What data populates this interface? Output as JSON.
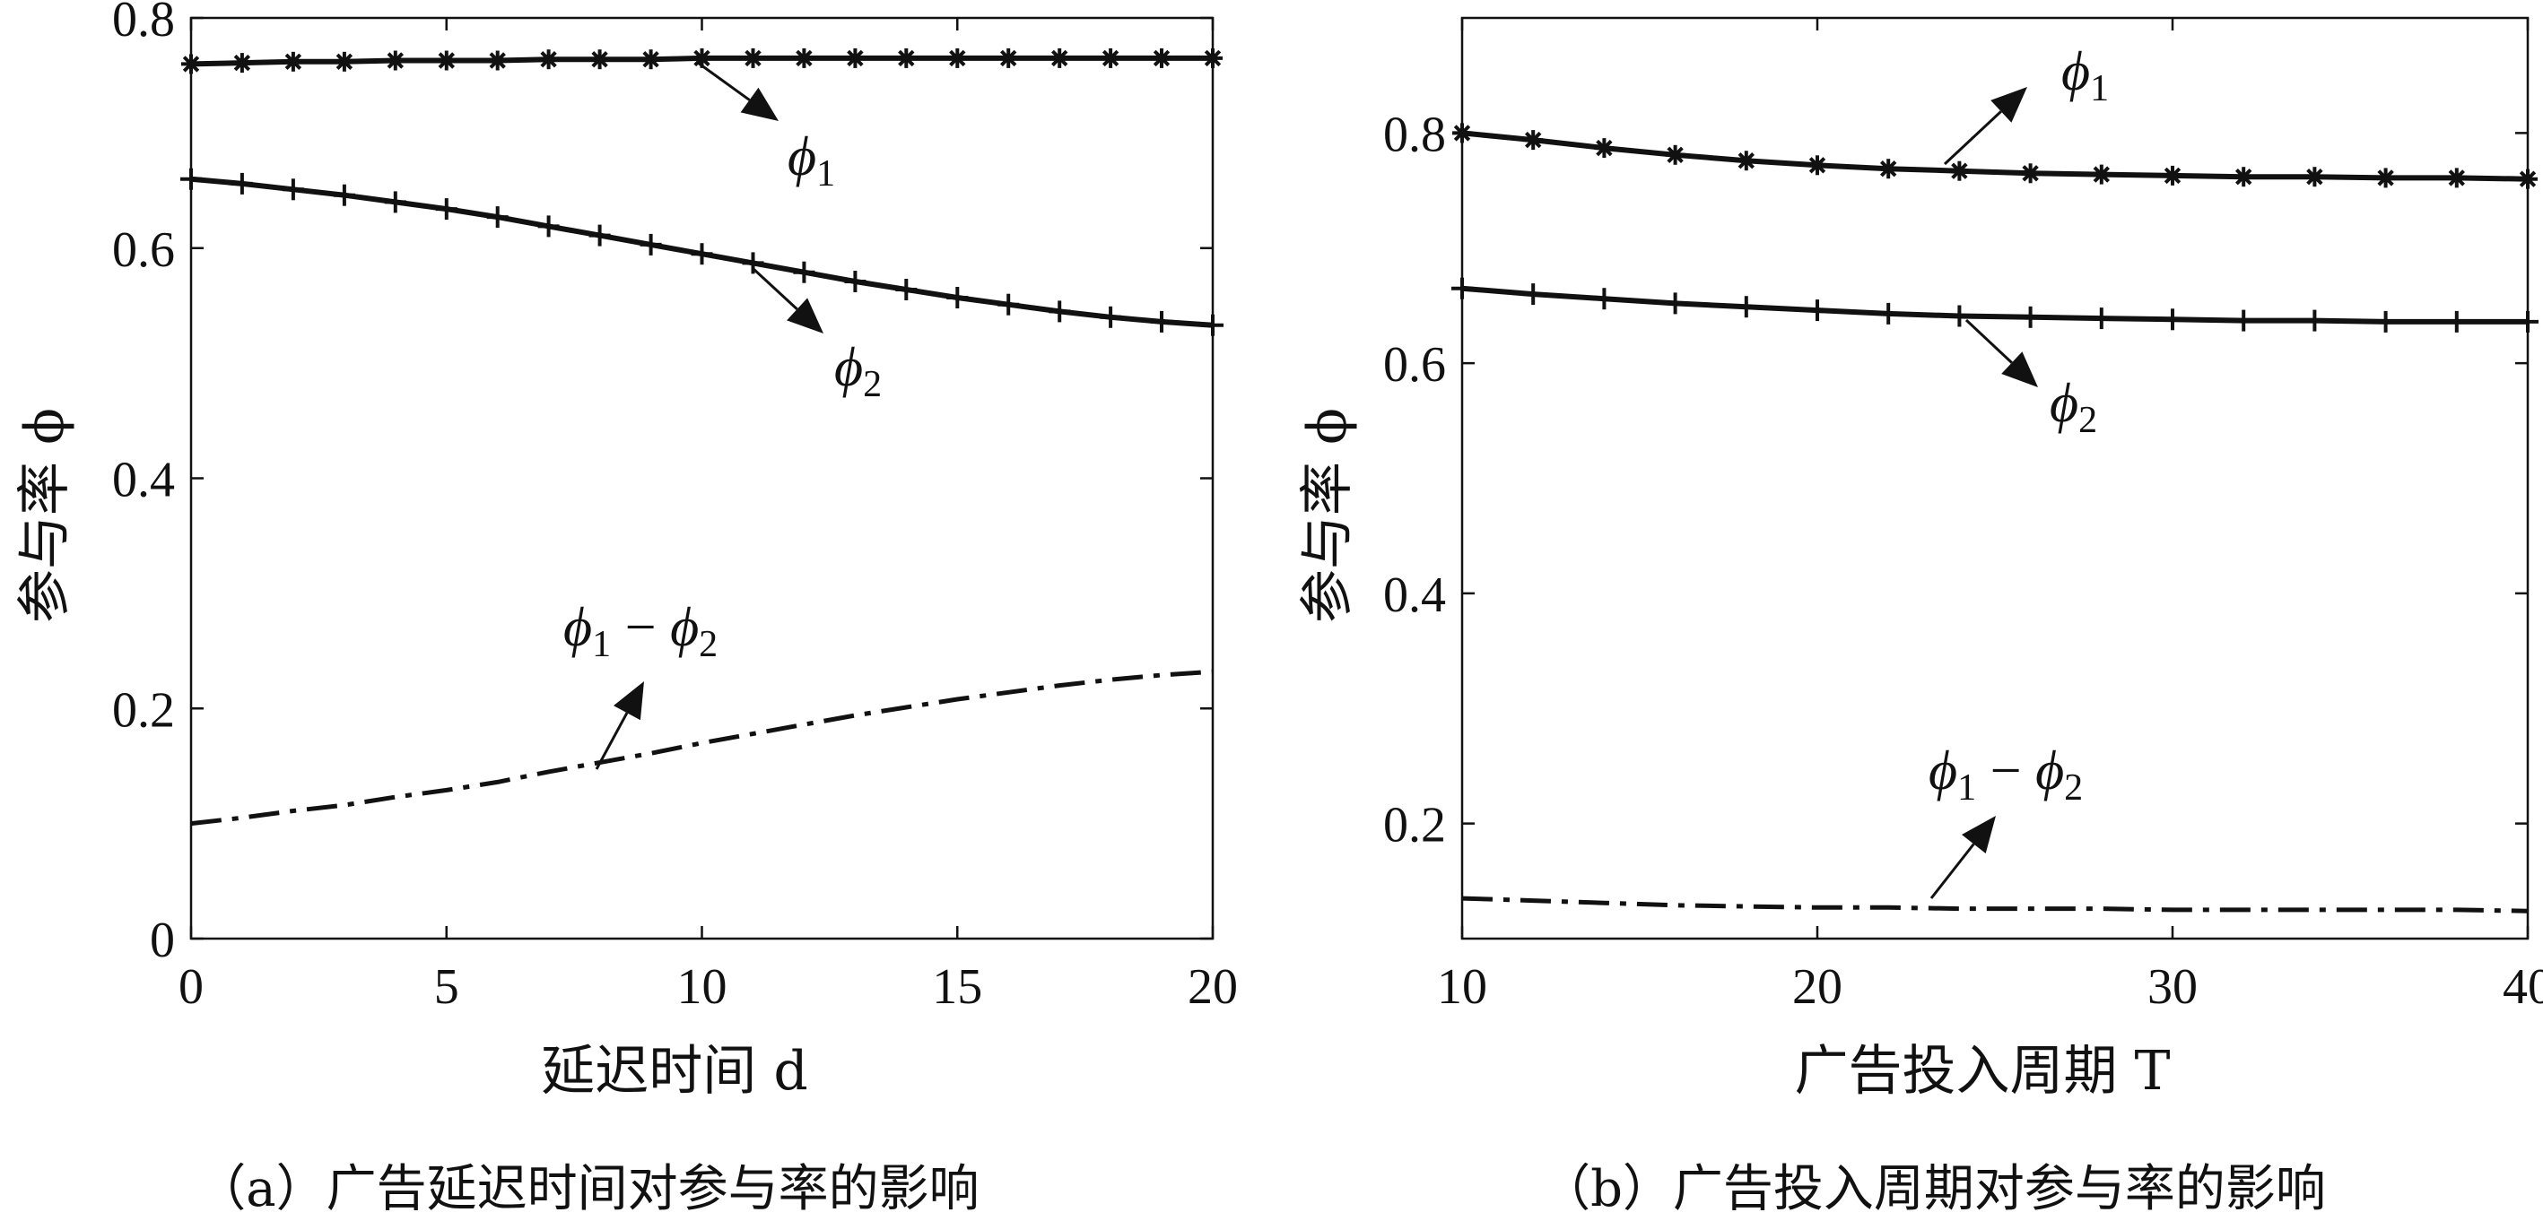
{
  "chart_data": [
    {
      "type": "line",
      "xlabel": "延迟时间 d",
      "ylabel": "参与率 ϕ",
      "caption": "（a）广告延迟时间对参与率的影响",
      "xlim": [
        0,
        20
      ],
      "ylim": [
        0,
        0.8
      ],
      "xticks": [
        "0",
        "5",
        "10",
        "15",
        "20"
      ],
      "yticks": [
        "0",
        "0.2",
        "0.4",
        "0.6",
        "0.8"
      ],
      "x": [
        0,
        1,
        2,
        3,
        4,
        5,
        6,
        7,
        8,
        9,
        10,
        11,
        12,
        13,
        14,
        15,
        16,
        17,
        18,
        19,
        20
      ],
      "series": [
        {
          "name": "ϕ1",
          "marker": "asterisk",
          "style": "solid",
          "values": [
            0.76,
            0.761,
            0.762,
            0.762,
            0.763,
            0.763,
            0.763,
            0.764,
            0.764,
            0.764,
            0.765,
            0.765,
            0.765,
            0.765,
            0.765,
            0.765,
            0.765,
            0.765,
            0.765,
            0.765,
            0.765
          ]
        },
        {
          "name": "ϕ2",
          "marker": "plus",
          "style": "solid",
          "values": [
            0.66,
            0.656,
            0.651,
            0.646,
            0.64,
            0.634,
            0.627,
            0.619,
            0.611,
            0.603,
            0.595,
            0.587,
            0.579,
            0.571,
            0.564,
            0.557,
            0.551,
            0.545,
            0.54,
            0.536,
            0.533
          ]
        },
        {
          "name": "ϕ1 − ϕ2",
          "marker": "none",
          "style": "dashdot",
          "values": [
            0.1,
            0.105,
            0.111,
            0.116,
            0.123,
            0.129,
            0.136,
            0.145,
            0.153,
            0.161,
            0.17,
            0.178,
            0.186,
            0.194,
            0.201,
            0.208,
            0.214,
            0.22,
            0.225,
            0.229,
            0.232
          ]
        }
      ],
      "annotations": [
        {
          "series": "ϕ1",
          "text": "ϕ",
          "sub": "1"
        },
        {
          "series": "ϕ2",
          "text": "ϕ",
          "sub": "2"
        },
        {
          "series": "ϕ1 − ϕ2",
          "text": "ϕ",
          "sub": "1",
          "op": " − ",
          "text2": "ϕ",
          "sub2": "2"
        }
      ]
    },
    {
      "type": "line",
      "xlabel": "广告投入周期 T",
      "ylabel": "参与率 ϕ",
      "caption": "（b）广告投入周期对参与率的影响",
      "xlim": [
        10,
        40
      ],
      "ylim": [
        0.1,
        0.9
      ],
      "xticks": [
        "10",
        "20",
        "30",
        "40"
      ],
      "yticks": [
        "0.2",
        "0.4",
        "0.6",
        "0.8"
      ],
      "x": [
        10,
        12,
        14,
        16,
        18,
        20,
        22,
        24,
        26,
        28,
        30,
        32,
        34,
        36,
        38,
        40
      ],
      "series": [
        {
          "name": "ϕ1",
          "marker": "asterisk",
          "style": "solid",
          "values": [
            0.8,
            0.794,
            0.787,
            0.781,
            0.776,
            0.772,
            0.769,
            0.767,
            0.765,
            0.764,
            0.763,
            0.762,
            0.762,
            0.761,
            0.761,
            0.76
          ]
        },
        {
          "name": "ϕ2",
          "marker": "plus",
          "style": "solid",
          "values": [
            0.665,
            0.66,
            0.656,
            0.652,
            0.649,
            0.646,
            0.643,
            0.641,
            0.64,
            0.639,
            0.638,
            0.637,
            0.637,
            0.636,
            0.636,
            0.636
          ]
        },
        {
          "name": "ϕ1 − ϕ2",
          "marker": "none",
          "style": "dashdot",
          "values": [
            0.135,
            0.133,
            0.131,
            0.129,
            0.128,
            0.127,
            0.127,
            0.126,
            0.126,
            0.126,
            0.125,
            0.125,
            0.125,
            0.125,
            0.125,
            0.124
          ]
        }
      ],
      "annotations": [
        {
          "series": "ϕ1",
          "text": "ϕ",
          "sub": "1"
        },
        {
          "series": "ϕ2",
          "text": "ϕ",
          "sub": "2"
        },
        {
          "series": "ϕ1 − ϕ2",
          "text": "ϕ",
          "sub": "1",
          "op": " − ",
          "text2": "ϕ",
          "sub2": "2"
        }
      ]
    }
  ]
}
